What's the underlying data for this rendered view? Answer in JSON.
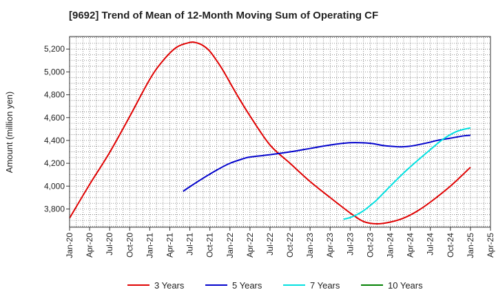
{
  "chart_data": {
    "type": "line",
    "title": "[9692]  Trend of Mean of 12-Month Moving Sum of Operating CF",
    "xlabel": "",
    "ylabel": "Amount (million yen)",
    "ylim": [
      3640,
      5310
    ],
    "yticks": [
      3800,
      4000,
      4200,
      4400,
      4600,
      4800,
      5000,
      5200
    ],
    "ytick_labels": [
      "3,800",
      "4,000",
      "4,200",
      "4,400",
      "4,600",
      "4,800",
      "5,000",
      "5,200"
    ],
    "xlim": [
      0,
      63
    ],
    "xticks": [
      0,
      3,
      6,
      9,
      12,
      15,
      18,
      21,
      24,
      27,
      30,
      33,
      36,
      39,
      42,
      45,
      48,
      51,
      54,
      57,
      60,
      63
    ],
    "xtick_labels": [
      "Jan-20",
      "Apr-20",
      "Jul-20",
      "Oct-20",
      "Jan-21",
      "Apr-21",
      "Jul-21",
      "Oct-21",
      "Jan-22",
      "Apr-22",
      "Jul-22",
      "Oct-22",
      "Jan-23",
      "Apr-23",
      "Jul-23",
      "Oct-23",
      "Jan-24",
      "Apr-24",
      "Jul-24",
      "Oct-24",
      "Jan-25",
      "Apr-25"
    ],
    "grid": true,
    "legend_position": "bottom",
    "series": [
      {
        "name": "3 Years",
        "color": "#e00000",
        "x": [
          0,
          3,
          6,
          9,
          12,
          14,
          16,
          18,
          19,
          20,
          21,
          22,
          23,
          25,
          27,
          30,
          33,
          36,
          39,
          42,
          44,
          46,
          48,
          50,
          52,
          54,
          57,
          60
        ],
        "y": [
          3720,
          4015,
          4295,
          4610,
          4935,
          5100,
          5215,
          5258,
          5255,
          5230,
          5180,
          5100,
          5010,
          4805,
          4615,
          4360,
          4200,
          4040,
          3900,
          3765,
          3690,
          3670,
          3685,
          3720,
          3780,
          3860,
          4000,
          4165
        ]
      },
      {
        "name": "5 Years",
        "color": "#0000cc",
        "x": [
          17,
          18,
          20,
          22,
          24,
          26,
          27,
          30,
          33,
          36,
          39,
          42,
          45,
          47,
          49,
          50,
          51,
          52,
          54,
          55,
          57,
          59,
          60
        ],
        "y": [
          3955,
          3995,
          4070,
          4140,
          4200,
          4240,
          4255,
          4275,
          4300,
          4330,
          4360,
          4380,
          4375,
          4355,
          4345,
          4345,
          4350,
          4360,
          4385,
          4400,
          4420,
          4440,
          4445
        ]
      },
      {
        "name": "7 Years",
        "color": "#00e0e0",
        "x": [
          41,
          42,
          43,
          44,
          45,
          46,
          47,
          48,
          50,
          52,
          54,
          56,
          58,
          60
        ],
        "y": [
          3710,
          3725,
          3750,
          3785,
          3830,
          3880,
          3940,
          4000,
          4115,
          4220,
          4320,
          4415,
          4480,
          4510
        ]
      },
      {
        "name": "10 Years",
        "color": "#008000",
        "x": [],
        "y": []
      }
    ]
  }
}
